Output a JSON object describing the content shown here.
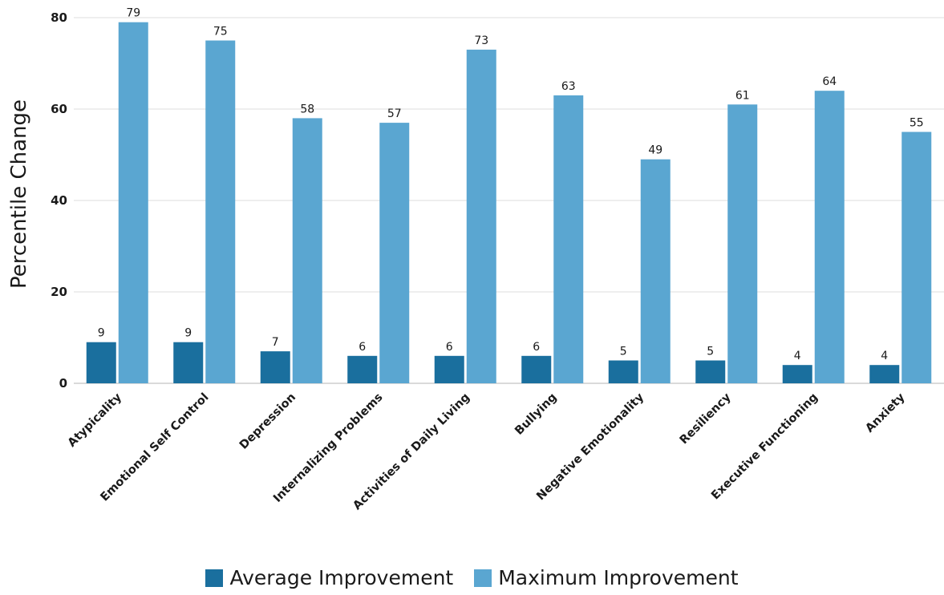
{
  "chart_data": {
    "type": "bar",
    "ylabel": "Percentile Change",
    "ylim": [
      0,
      80
    ],
    "yticks": [
      0,
      20,
      40,
      60,
      80
    ],
    "grid": true,
    "legend_position": "bottom",
    "categories": [
      "Atypicality",
      "Emotional Self Control",
      "Depression",
      "Internalizing Problems",
      "Activities of Daily Living",
      "Bullying",
      "Negative Emotionality",
      "Resiliency",
      "Executive Functioning",
      "Anxiety"
    ],
    "series": [
      {
        "name": "Average Improvement",
        "color": "#1a6f9e",
        "values": [
          9,
          9,
          7,
          6,
          6,
          6,
          5,
          5,
          4,
          4
        ]
      },
      {
        "name": "Maximum Improvement",
        "color": "#5aa6d1",
        "values": [
          79,
          75,
          58,
          57,
          73,
          63,
          49,
          61,
          64,
          55
        ]
      }
    ]
  }
}
